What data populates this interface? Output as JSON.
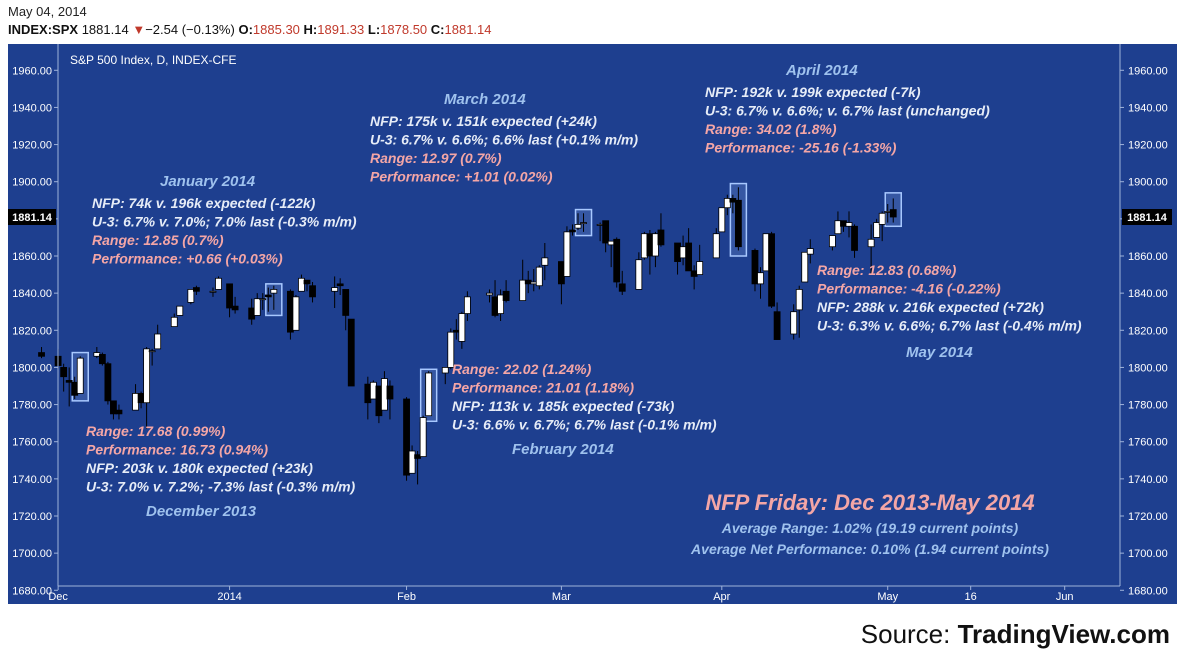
{
  "header": {
    "date": "May 04, 2014",
    "symbol": "INDEX:SPX",
    "last": "1881.14",
    "change": "−2.54 (−0.13%)",
    "o_label": "O:",
    "open": "1885.30",
    "h_label": "H:",
    "high": "1891.33",
    "l_label": "L:",
    "low": "1878.50",
    "c_label": "C:",
    "close": "1881.14"
  },
  "source": {
    "prefix": "Source: ",
    "name": "TradingView.com"
  },
  "colors": {
    "background": "#1e3f8f",
    "up": "#ffffff",
    "down": "#000000",
    "annotation_white": "#e6ecf7",
    "annotation_red": "#f4a6a6",
    "month_label": "#9fc2ee",
    "highlight_box": "#a8c8ff"
  },
  "chart_data": {
    "type": "candlestick",
    "title": "S&P 500 Index, D, INDEX-CFE",
    "ylim": [
      1678,
      1972
    ],
    "y_ticks": [
      1680,
      1700,
      1720,
      1740,
      1760,
      1780,
      1800,
      1820,
      1840,
      1860,
      1880,
      1900,
      1920,
      1940,
      1960
    ],
    "y_tick_labels": [
      "1680.00",
      "1700.00",
      "1720.00",
      "1740.00",
      "1760.00",
      "1780.00",
      "1800.00",
      "1820.00",
      "1840.00",
      "1860.00",
      "1880.00",
      "1900.00",
      "1920.00",
      "1940.00",
      "1960.00"
    ],
    "x_ticks": [
      {
        "label": "Dec",
        "date": "2013-12-02"
      },
      {
        "label": "2014",
        "date": "2014-01-02"
      },
      {
        "label": "Feb",
        "date": "2014-02-03"
      },
      {
        "label": "Mar",
        "date": "2014-03-03"
      },
      {
        "label": "Apr",
        "date": "2014-04-01"
      },
      {
        "label": "May",
        "date": "2014-05-01"
      },
      {
        "label": "16",
        "date": "2014-05-16"
      },
      {
        "label": "Jun",
        "date": "2014-06-02"
      }
    ],
    "x_range": [
      "2013-11-28",
      "2014-06-12"
    ],
    "last_price_label": "1881.14",
    "candles": [
      {
        "d": "2013-11-29",
        "o": 1808,
        "h": 1811,
        "l": 1805,
        "c": 1806
      },
      {
        "d": "2013-12-02",
        "o": 1806,
        "h": 1810,
        "l": 1799,
        "c": 1801
      },
      {
        "d": "2013-12-03",
        "o": 1800,
        "h": 1802,
        "l": 1787,
        "c": 1795
      },
      {
        "d": "2013-12-04",
        "o": 1793,
        "h": 1800,
        "l": 1779,
        "c": 1792
      },
      {
        "d": "2013-12-05",
        "o": 1792,
        "h": 1795,
        "l": 1783,
        "c": 1785
      },
      {
        "d": "2013-12-06",
        "o": 1786,
        "h": 1806,
        "l": 1786,
        "c": 1805
      },
      {
        "d": "2013-12-09",
        "o": 1806,
        "h": 1811,
        "l": 1805,
        "c": 1808
      },
      {
        "d": "2013-12-10",
        "o": 1807,
        "h": 1808,
        "l": 1801,
        "c": 1802
      },
      {
        "d": "2013-12-11",
        "o": 1802,
        "h": 1803,
        "l": 1780,
        "c": 1782
      },
      {
        "d": "2013-12-12",
        "o": 1782,
        "h": 1782,
        "l": 1772,
        "c": 1775
      },
      {
        "d": "2013-12-13",
        "o": 1777,
        "h": 1780,
        "l": 1772,
        "c": 1775
      },
      {
        "d": "2013-12-16",
        "o": 1777,
        "h": 1791,
        "l": 1777,
        "c": 1786
      },
      {
        "d": "2013-12-17",
        "o": 1786,
        "h": 1787,
        "l": 1778,
        "c": 1781
      },
      {
        "d": "2013-12-18",
        "o": 1781,
        "h": 1811,
        "l": 1767,
        "c": 1810
      },
      {
        "d": "2013-12-19",
        "o": 1809,
        "h": 1810,
        "l": 1801,
        "c": 1809
      },
      {
        "d": "2013-12-20",
        "o": 1810,
        "h": 1823,
        "l": 1810,
        "c": 1818
      },
      {
        "d": "2013-12-23",
        "o": 1822,
        "h": 1829,
        "l": 1822,
        "c": 1827
      },
      {
        "d": "2013-12-24",
        "o": 1828,
        "h": 1833,
        "l": 1828,
        "c": 1833
      },
      {
        "d": "2013-12-26",
        "o": 1835,
        "h": 1842,
        "l": 1834,
        "c": 1842
      },
      {
        "d": "2013-12-27",
        "o": 1843,
        "h": 1844,
        "l": 1839,
        "c": 1841
      },
      {
        "d": "2013-12-30",
        "o": 1841,
        "h": 1843,
        "l": 1838,
        "c": 1841
      },
      {
        "d": "2013-12-31",
        "o": 1842,
        "h": 1849,
        "l": 1842,
        "c": 1848
      },
      {
        "d": "2014-01-02",
        "o": 1845,
        "h": 1845,
        "l": 1827,
        "c": 1832
      },
      {
        "d": "2014-01-03",
        "o": 1833,
        "h": 1838,
        "l": 1829,
        "c": 1831
      },
      {
        "d": "2014-01-06",
        "o": 1832,
        "h": 1837,
        "l": 1823,
        "c": 1826
      },
      {
        "d": "2014-01-07",
        "o": 1828,
        "h": 1840,
        "l": 1828,
        "c": 1837
      },
      {
        "d": "2014-01-08",
        "o": 1837,
        "h": 1840,
        "l": 1831,
        "c": 1837
      },
      {
        "d": "2014-01-09",
        "o": 1839,
        "h": 1843,
        "l": 1830,
        "c": 1838
      },
      {
        "d": "2014-01-10",
        "o": 1840,
        "h": 1844,
        "l": 1831,
        "c": 1842
      },
      {
        "d": "2014-01-13",
        "o": 1841,
        "h": 1842,
        "l": 1815,
        "c": 1819
      },
      {
        "d": "2014-01-14",
        "o": 1820,
        "h": 1839,
        "l": 1820,
        "c": 1838
      },
      {
        "d": "2014-01-15",
        "o": 1841,
        "h": 1850,
        "l": 1841,
        "c": 1848
      },
      {
        "d": "2014-01-16",
        "o": 1847,
        "h": 1847,
        "l": 1841,
        "c": 1845
      },
      {
        "d": "2014-01-17",
        "o": 1844,
        "h": 1846,
        "l": 1835,
        "c": 1838
      },
      {
        "d": "2014-01-21",
        "o": 1841,
        "h": 1849,
        "l": 1832,
        "c": 1843
      },
      {
        "d": "2014-01-22",
        "o": 1845,
        "h": 1848,
        "l": 1839,
        "c": 1844
      },
      {
        "d": "2014-01-23",
        "o": 1842,
        "h": 1842,
        "l": 1820,
        "c": 1828
      },
      {
        "d": "2014-01-24",
        "o": 1826,
        "h": 1826,
        "l": 1790,
        "c": 1790
      },
      {
        "d": "2014-01-27",
        "o": 1791,
        "h": 1795,
        "l": 1772,
        "c": 1781
      },
      {
        "d": "2014-01-28",
        "o": 1783,
        "h": 1793,
        "l": 1783,
        "c": 1792
      },
      {
        "d": "2014-01-29",
        "o": 1790,
        "h": 1790,
        "l": 1770,
        "c": 1774
      },
      {
        "d": "2014-01-30",
        "o": 1777,
        "h": 1798,
        "l": 1777,
        "c": 1794
      },
      {
        "d": "2014-01-31",
        "o": 1790,
        "h": 1793,
        "l": 1772,
        "c": 1783
      },
      {
        "d": "2014-02-03",
        "o": 1783,
        "h": 1784,
        "l": 1739,
        "c": 1742
      },
      {
        "d": "2014-02-04",
        "o": 1743,
        "h": 1758,
        "l": 1743,
        "c": 1755
      },
      {
        "d": "2014-02-05",
        "o": 1753,
        "h": 1755,
        "l": 1737,
        "c": 1751
      },
      {
        "d": "2014-02-06",
        "o": 1752,
        "h": 1774,
        "l": 1752,
        "c": 1773
      },
      {
        "d": "2014-02-07",
        "o": 1774,
        "h": 1798,
        "l": 1774,
        "c": 1797
      },
      {
        "d": "2014-02-10",
        "o": 1797,
        "h": 1800,
        "l": 1791,
        "c": 1800
      },
      {
        "d": "2014-02-11",
        "o": 1800,
        "h": 1821,
        "l": 1799,
        "c": 1819
      },
      {
        "d": "2014-02-12",
        "o": 1820,
        "h": 1826,
        "l": 1815,
        "c": 1819
      },
      {
        "d": "2014-02-13",
        "o": 1814,
        "h": 1830,
        "l": 1810,
        "c": 1829
      },
      {
        "d": "2014-02-14",
        "o": 1829,
        "h": 1841,
        "l": 1825,
        "c": 1838
      },
      {
        "d": "2014-02-18",
        "o": 1839,
        "h": 1842,
        "l": 1835,
        "c": 1840
      },
      {
        "d": "2014-02-19",
        "o": 1838,
        "h": 1847,
        "l": 1827,
        "c": 1828
      },
      {
        "d": "2014-02-20",
        "o": 1829,
        "h": 1842,
        "l": 1825,
        "c": 1839
      },
      {
        "d": "2014-02-21",
        "o": 1841,
        "h": 1847,
        "l": 1835,
        "c": 1836
      },
      {
        "d": "2014-02-24",
        "o": 1836,
        "h": 1858,
        "l": 1836,
        "c": 1847
      },
      {
        "d": "2014-02-25",
        "o": 1847,
        "h": 1852,
        "l": 1840,
        "c": 1845
      },
      {
        "d": "2014-02-26",
        "o": 1845,
        "h": 1853,
        "l": 1841,
        "c": 1846
      },
      {
        "d": "2014-02-27",
        "o": 1844,
        "h": 1855,
        "l": 1842,
        "c": 1854
      },
      {
        "d": "2014-02-28",
        "o": 1855,
        "h": 1867,
        "l": 1847,
        "c": 1859
      },
      {
        "d": "2014-03-03",
        "o": 1857,
        "h": 1857,
        "l": 1834,
        "c": 1845
      },
      {
        "d": "2014-03-04",
        "o": 1849,
        "h": 1876,
        "l": 1849,
        "c": 1873
      },
      {
        "d": "2014-03-05",
        "o": 1874,
        "h": 1877,
        "l": 1871,
        "c": 1873
      },
      {
        "d": "2014-03-06",
        "o": 1875,
        "h": 1883,
        "l": 1874,
        "c": 1877
      },
      {
        "d": "2014-03-07",
        "o": 1878,
        "h": 1883,
        "l": 1873,
        "c": 1878
      },
      {
        "d": "2014-03-10",
        "o": 1877,
        "h": 1878,
        "l": 1868,
        "c": 1877
      },
      {
        "d": "2014-03-11",
        "o": 1879,
        "h": 1879,
        "l": 1862,
        "c": 1867
      },
      {
        "d": "2014-03-12",
        "o": 1866,
        "h": 1868,
        "l": 1854,
        "c": 1868
      },
      {
        "d": "2014-03-13",
        "o": 1869,
        "h": 1870,
        "l": 1843,
        "c": 1846
      },
      {
        "d": "2014-03-14",
        "o": 1845,
        "h": 1852,
        "l": 1839,
        "c": 1841
      },
      {
        "d": "2014-03-17",
        "o": 1842,
        "h": 1862,
        "l": 1842,
        "c": 1858
      },
      {
        "d": "2014-03-18",
        "o": 1859,
        "h": 1873,
        "l": 1858,
        "c": 1872
      },
      {
        "d": "2014-03-19",
        "o": 1872,
        "h": 1874,
        "l": 1850,
        "c": 1860
      },
      {
        "d": "2014-03-20",
        "o": 1860,
        "h": 1873,
        "l": 1854,
        "c": 1872
      },
      {
        "d": "2014-03-21",
        "o": 1874,
        "h": 1883,
        "l": 1865,
        "c": 1866
      },
      {
        "d": "2014-03-24",
        "o": 1867,
        "h": 1867,
        "l": 1850,
        "c": 1857
      },
      {
        "d": "2014-03-25",
        "o": 1859,
        "h": 1871,
        "l": 1855,
        "c": 1865
      },
      {
        "d": "2014-03-26",
        "o": 1867,
        "h": 1875,
        "l": 1852,
        "c": 1852
      },
      {
        "d": "2014-03-27",
        "o": 1852,
        "h": 1855,
        "l": 1842,
        "c": 1849
      },
      {
        "d": "2014-03-28",
        "o": 1850,
        "h": 1866,
        "l": 1850,
        "c": 1857
      },
      {
        "d": "2014-03-31",
        "o": 1859,
        "h": 1875,
        "l": 1859,
        "c": 1872
      },
      {
        "d": "2014-04-01",
        "o": 1873,
        "h": 1886,
        "l": 1873,
        "c": 1886
      },
      {
        "d": "2014-04-02",
        "o": 1886,
        "h": 1893,
        "l": 1882,
        "c": 1891
      },
      {
        "d": "2014-04-03",
        "o": 1891,
        "h": 1893,
        "l": 1883,
        "c": 1889
      },
      {
        "d": "2014-04-04",
        "o": 1890,
        "h": 1897,
        "l": 1863,
        "c": 1865
      },
      {
        "d": "2014-04-07",
        "o": 1863,
        "h": 1864,
        "l": 1841,
        "c": 1845
      },
      {
        "d": "2014-04-08",
        "o": 1845,
        "h": 1854,
        "l": 1837,
        "c": 1851
      },
      {
        "d": "2014-04-09",
        "o": 1852,
        "h": 1872,
        "l": 1852,
        "c": 1872
      },
      {
        "d": "2014-04-10",
        "o": 1872,
        "h": 1873,
        "l": 1832,
        "c": 1833
      },
      {
        "d": "2014-04-11",
        "o": 1830,
        "h": 1835,
        "l": 1815,
        "c": 1815
      },
      {
        "d": "2014-04-14",
        "o": 1818,
        "h": 1834,
        "l": 1815,
        "c": 1830
      },
      {
        "d": "2014-04-15",
        "o": 1831,
        "h": 1844,
        "l": 1816,
        "c": 1842
      },
      {
        "d": "2014-04-16",
        "o": 1846,
        "h": 1862,
        "l": 1846,
        "c": 1862
      },
      {
        "d": "2014-04-17",
        "o": 1861,
        "h": 1869,
        "l": 1856,
        "c": 1864
      },
      {
        "d": "2014-04-21",
        "o": 1865,
        "h": 1871,
        "l": 1863,
        "c": 1871
      },
      {
        "d": "2014-04-22",
        "o": 1872,
        "h": 1884,
        "l": 1872,
        "c": 1879
      },
      {
        "d": "2014-04-23",
        "o": 1879,
        "h": 1879,
        "l": 1873,
        "c": 1876
      },
      {
        "d": "2014-04-24",
        "o": 1876,
        "h": 1884,
        "l": 1870,
        "c": 1878
      },
      {
        "d": "2014-04-25",
        "o": 1876,
        "h": 1877,
        "l": 1859,
        "c": 1863
      },
      {
        "d": "2014-04-28",
        "o": 1865,
        "h": 1877,
        "l": 1850,
        "c": 1869
      },
      {
        "d": "2014-04-29",
        "o": 1870,
        "h": 1880,
        "l": 1870,
        "c": 1878
      },
      {
        "d": "2014-04-30",
        "o": 1877,
        "h": 1884,
        "l": 1868,
        "c": 1883
      },
      {
        "d": "2014-05-01",
        "o": 1884,
        "h": 1888,
        "l": 1878,
        "c": 1884
      },
      {
        "d": "2014-05-02",
        "o": 1885,
        "h": 1891,
        "l": 1878,
        "c": 1881
      }
    ],
    "highlights": [
      {
        "date": "2013-12-06",
        "low": 1782,
        "high": 1808
      },
      {
        "date": "2014-01-10",
        "low": 1828,
        "high": 1845
      },
      {
        "date": "2014-02-07",
        "low": 1771,
        "high": 1799
      },
      {
        "date": "2014-03-07",
        "low": 1871,
        "high": 1885
      },
      {
        "date": "2014-04-04",
        "low": 1860,
        "high": 1899
      },
      {
        "date": "2014-05-02",
        "low": 1876,
        "high": 1894
      }
    ],
    "annotations": [
      {
        "month": "December 2013",
        "lines": [
          {
            "text": "Range: 17.68 (0.99%)",
            "color": "red"
          },
          {
            "text": "Performance: 16.73 (0.94%)",
            "color": "red"
          },
          {
            "text": "NFP: 203k v. 180k expected (+23k)",
            "color": "white"
          },
          {
            "text": "U-3: 7.0% v. 7.2%; -7.3% last (-0.3% m/m)",
            "color": "white"
          }
        ]
      },
      {
        "month": "January 2014",
        "lines": [
          {
            "text": "NFP: 74k v. 196k expected (-122k)",
            "color": "white"
          },
          {
            "text": "U-3: 6.7% v. 7.0%; 7.0% last (-0.3% m/m)",
            "color": "white"
          },
          {
            "text": "Range: 12.85 (0.7%)",
            "color": "red"
          },
          {
            "text": "Performance: +0.66 (+0.03%)",
            "color": "red"
          }
        ]
      },
      {
        "month": "February 2014",
        "lines": [
          {
            "text": "Range: 22.02 (1.24%)",
            "color": "red"
          },
          {
            "text": "Performance: 21.01 (1.18%)",
            "color": "red"
          },
          {
            "text": "NFP: 113k v. 185k expected (-73k)",
            "color": "white"
          },
          {
            "text": "U-3: 6.6% v. 6.7%; 6.7% last (-0.1% m/m)",
            "color": "white"
          }
        ]
      },
      {
        "month": "March 2014",
        "lines": [
          {
            "text": "NFP: 175k v. 151k expected (+24k)",
            "color": "white"
          },
          {
            "text": "U-3: 6.7% v. 6.6%; 6.6% last (+0.1% m/m)",
            "color": "white"
          },
          {
            "text": "Range: 12.97 (0.7%)",
            "color": "red"
          },
          {
            "text": "Performance: +1.01 (0.02%)",
            "color": "red"
          }
        ]
      },
      {
        "month": "April 2014",
        "lines": [
          {
            "text": "NFP: 192k v. 199k expected (-7k)",
            "color": "white"
          },
          {
            "text": "U-3: 6.7% v. 6.6%; v. 6.7% last (unchanged)",
            "color": "white"
          },
          {
            "text": "Range: 34.02 (1.8%)",
            "color": "red"
          },
          {
            "text": "Performance: -25.16 (-1.33%)",
            "color": "red"
          }
        ]
      },
      {
        "month": "May 2014",
        "lines": [
          {
            "text": "Range: 12.83 (0.68%)",
            "color": "red"
          },
          {
            "text": "Performance: -4.16 (-0.22%)",
            "color": "red"
          },
          {
            "text": "NFP: 288k v. 216k expected (+72k)",
            "color": "white"
          },
          {
            "text": "U-3: 6.3% v. 6.6%; 6.7% last (-0.4% m/m)",
            "color": "white"
          }
        ]
      }
    ],
    "summary": {
      "title": "NFP Friday: Dec 2013-May 2014",
      "lines": [
        "Average Range: 1.02% (19.19 current points)",
        "Average Net Performance: 0.10% (1.94 current points)"
      ]
    }
  }
}
